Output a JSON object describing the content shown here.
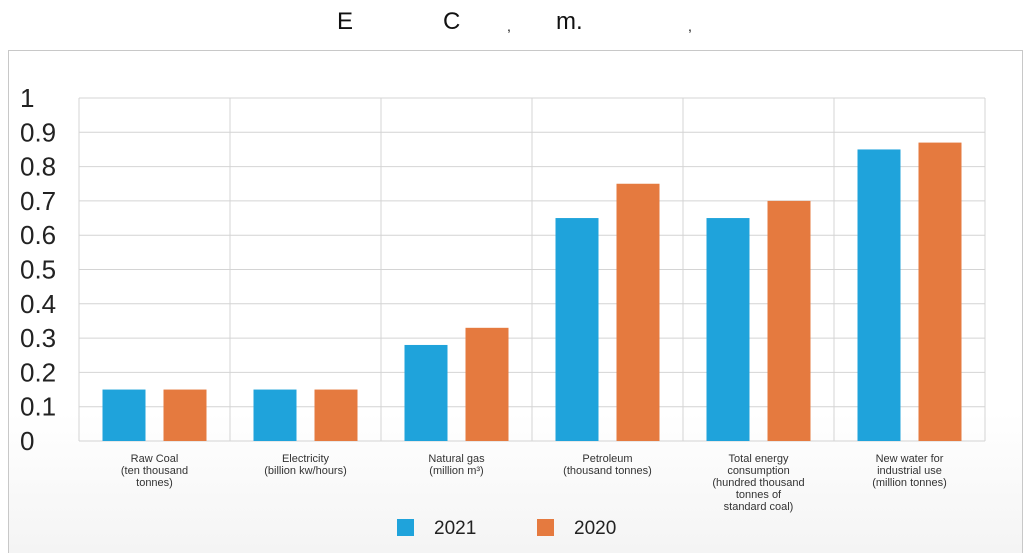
{
  "title_fragments": [
    "E",
    "C",
    ",",
    "m.",
    ","
  ],
  "chart_data": {
    "type": "bar",
    "categories": [
      [
        "Raw Coal",
        "(ten thousand",
        "tonnes)"
      ],
      [
        "Electricity",
        "(billion kw/hours)"
      ],
      [
        "Natural gas",
        "(million m³)"
      ],
      [
        "Petroleum",
        "(thousand tonnes)"
      ],
      [
        "Total energy",
        "consumption",
        "(hundred thousand",
        "tonnes of",
        "standard coal)"
      ],
      [
        "New water for",
        "industrial use",
        "(million tonnes)"
      ]
    ],
    "series": [
      {
        "name": "2021",
        "color": "#1FA3DB",
        "values": [
          0.15,
          0.15,
          0.28,
          0.65,
          0.65,
          0.85
        ]
      },
      {
        "name": "2020",
        "color": "#E57A3F",
        "values": [
          0.15,
          0.15,
          0.33,
          0.75,
          0.7,
          0.87
        ]
      }
    ],
    "yticks": [
      "0",
      "0.1",
      "0.2",
      "0.3",
      "0.4",
      "0.5",
      "0.6",
      "0.7",
      "0.8",
      "0.9",
      "1"
    ],
    "ylim": [
      0,
      1
    ],
    "grid": true,
    "legend_position": "bottom"
  }
}
